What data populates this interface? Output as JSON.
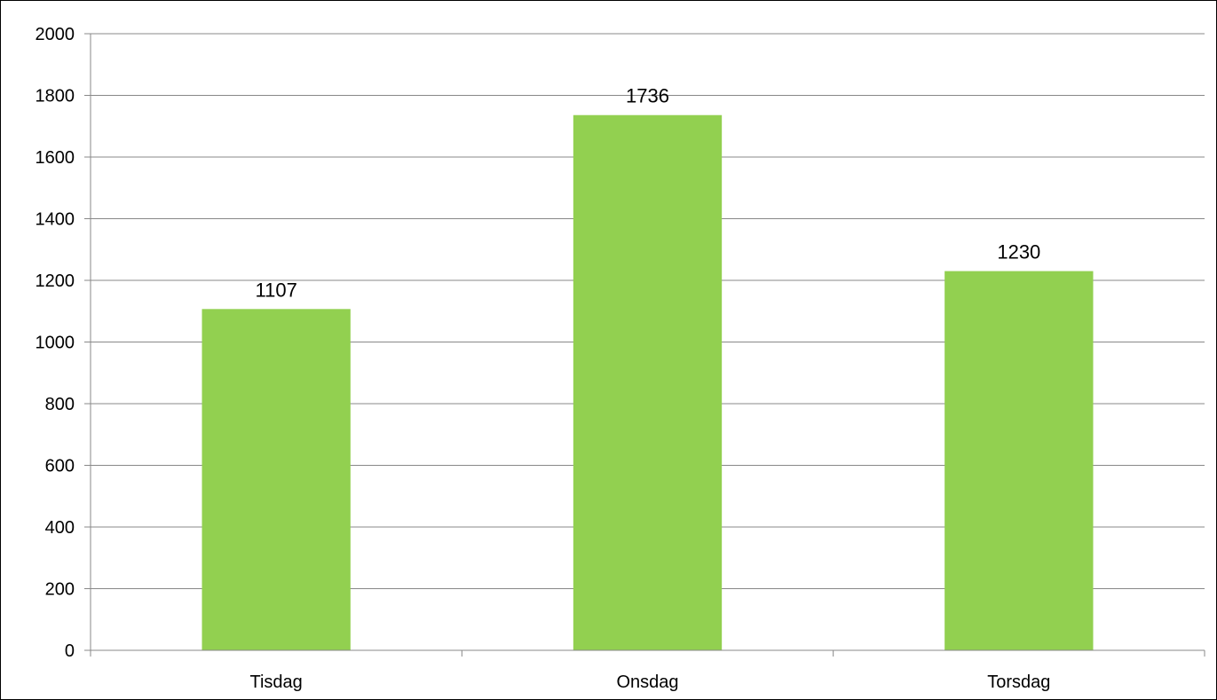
{
  "chart_data": {
    "type": "bar",
    "categories": [
      "Tisdag",
      "Onsdag",
      "Torsdag"
    ],
    "values": [
      1107,
      1736,
      1230
    ],
    "data_labels": [
      "1107",
      "1736",
      "1230"
    ],
    "title": "",
    "xlabel": "",
    "ylabel": "",
    "ylim": [
      0,
      2000
    ],
    "yticks": [
      0,
      200,
      400,
      600,
      800,
      1000,
      1200,
      1400,
      1600,
      1800,
      2000
    ],
    "grid": true,
    "legend": "none",
    "colors": {
      "bar": "#92d050",
      "grid": "#888888",
      "axis": "#888888",
      "text": "#000000"
    }
  }
}
